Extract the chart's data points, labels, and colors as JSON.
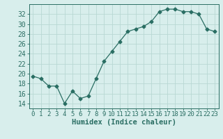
{
  "x": [
    0,
    1,
    2,
    3,
    4,
    5,
    6,
    7,
    8,
    9,
    10,
    11,
    12,
    13,
    14,
    15,
    16,
    17,
    18,
    19,
    20,
    21,
    22,
    23
  ],
  "y": [
    19.5,
    19.0,
    17.5,
    17.5,
    14.0,
    16.5,
    15.0,
    15.5,
    19.0,
    22.5,
    24.5,
    26.5,
    28.5,
    29.0,
    29.5,
    30.5,
    32.5,
    33.0,
    33.0,
    32.5,
    32.5,
    32.0,
    29.0,
    28.5
  ],
  "line_color": "#2a6e63",
  "marker": "D",
  "marker_size": 2.5,
  "bg_color": "#d8eeec",
  "grid_color": "#b8d8d4",
  "xlabel": "Humidex (Indice chaleur)",
  "xlim": [
    -0.5,
    23.5
  ],
  "ylim": [
    13,
    34
  ],
  "yticks": [
    14,
    16,
    18,
    20,
    22,
    24,
    26,
    28,
    30,
    32
  ],
  "xticks": [
    0,
    1,
    2,
    3,
    4,
    5,
    6,
    7,
    8,
    9,
    10,
    11,
    12,
    13,
    14,
    15,
    16,
    17,
    18,
    19,
    20,
    21,
    22,
    23
  ],
  "xlabel_fontsize": 7.5,
  "tick_fontsize": 6.5,
  "ytick_fontsize": 7
}
